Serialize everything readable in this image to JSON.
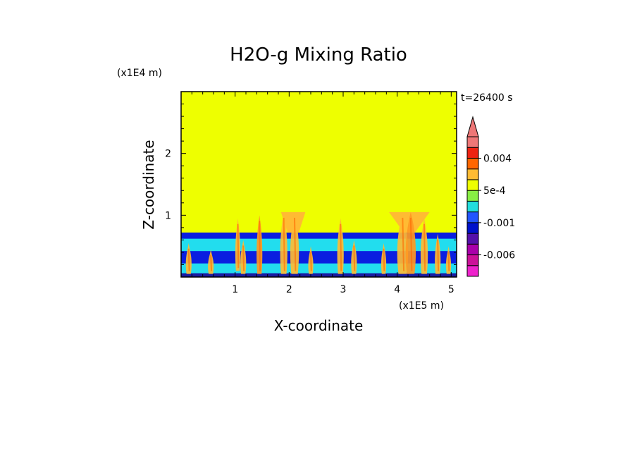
{
  "chart_data": {
    "type": "heatmap",
    "title": "H2O-g Mixing Ratio",
    "xlabel": "X-coordinate",
    "ylabel": "Z-coordinate",
    "x_unit": "(x1E5 m)",
    "y_unit": "(x1E4 m)",
    "time_label": "t=26400 s",
    "xlim": [
      0,
      5.1
    ],
    "ylim": [
      0,
      3.0
    ],
    "x_ticks": [
      1,
      2,
      3,
      4,
      5
    ],
    "y_ticks": [
      1,
      2
    ],
    "colorbar": {
      "extend": "max",
      "levels": [
        -0.008,
        -0.006,
        -0.004,
        -0.002,
        -0.001,
        -0.0005,
        0,
        0.0005,
        0.001,
        0.002,
        0.004,
        0.006,
        0.008
      ],
      "colors": [
        "#ee22cc",
        "#cc1199",
        "#aa00aa",
        "#5511aa",
        "#0011cc",
        "#2255ff",
        "#22dddd",
        "#88ee44",
        "#eeff00",
        "#ffbb33",
        "#ff6600",
        "#ee2211",
        "#ee7777"
      ],
      "extend_color": "#ee7777",
      "labels": [
        {
          "text": "0.004",
          "value": 0.004
        },
        {
          "text": "5e-4",
          "value": 0.0005
        },
        {
          "text": "-0.001",
          "value": -0.001
        },
        {
          "text": "-0.006",
          "value": -0.006
        }
      ]
    },
    "field": {
      "background_color": "#eeff00",
      "layers": [
        {
          "color": "#0a1ee0",
          "z": [
            0,
            0.72
          ]
        },
        {
          "color": "#22ddee",
          "z": [
            0.06,
            0.62
          ]
        },
        {
          "color": "#0a1ee0",
          "z": [
            0.2,
            0.42
          ]
        },
        {
          "color": "#22ddee",
          "z": [
            0.08,
            0.22
          ]
        },
        {
          "color": "#1a1aa0",
          "z": [
            0.0,
            0.06
          ]
        }
      ],
      "plumes": [
        {
          "x": 0.14,
          "z0": 0.05,
          "z1": 0.55,
          "w": 0.08,
          "color": "#ffbb33"
        },
        {
          "x": 0.55,
          "z0": 0.05,
          "z1": 0.45,
          "w": 0.08,
          "color": "#ffbb33"
        },
        {
          "x": 1.05,
          "z0": 0.1,
          "z1": 0.95,
          "w": 0.07,
          "color": "#ffbb33"
        },
        {
          "x": 1.15,
          "z0": 0.05,
          "z1": 0.6,
          "w": 0.08,
          "color": "#ffbb33"
        },
        {
          "x": 1.45,
          "z0": 0.05,
          "z1": 1.0,
          "w": 0.08,
          "color": "#ff9922"
        },
        {
          "x": 1.9,
          "z0": 0.05,
          "z1": 1.05,
          "w": 0.1,
          "color": "#ffbb33"
        },
        {
          "x": 2.1,
          "z0": 0.05,
          "z1": 1.05,
          "w": 0.12,
          "color": "#ffbb33"
        },
        {
          "x": 2.4,
          "z0": 0.05,
          "z1": 0.5,
          "w": 0.07,
          "color": "#ffbb33"
        },
        {
          "x": 2.95,
          "z0": 0.05,
          "z1": 0.95,
          "w": 0.09,
          "color": "#ffbb33"
        },
        {
          "x": 3.2,
          "z0": 0.05,
          "z1": 0.6,
          "w": 0.08,
          "color": "#ffbb33"
        },
        {
          "x": 3.75,
          "z0": 0.05,
          "z1": 0.55,
          "w": 0.07,
          "color": "#ffbb33"
        },
        {
          "x": 4.1,
          "z0": 0.05,
          "z1": 1.05,
          "w": 0.15,
          "color": "#ffbb33"
        },
        {
          "x": 4.25,
          "z0": 0.05,
          "z1": 1.05,
          "w": 0.14,
          "color": "#ff9922"
        },
        {
          "x": 4.5,
          "z0": 0.05,
          "z1": 0.95,
          "w": 0.1,
          "color": "#ffbb33"
        },
        {
          "x": 4.75,
          "z0": 0.05,
          "z1": 0.7,
          "w": 0.08,
          "color": "#ffbb33"
        },
        {
          "x": 4.95,
          "z0": 0.05,
          "z1": 0.5,
          "w": 0.07,
          "color": "#ffbb33"
        }
      ],
      "caps": [
        {
          "x0": 1.85,
          "x1": 2.3,
          "z": [
            0.95,
            1.05
          ],
          "color": "#ffbb33"
        },
        {
          "x0": 3.85,
          "x1": 4.6,
          "z": [
            0.95,
            1.05
          ],
          "color": "#ffbb33"
        }
      ]
    }
  }
}
